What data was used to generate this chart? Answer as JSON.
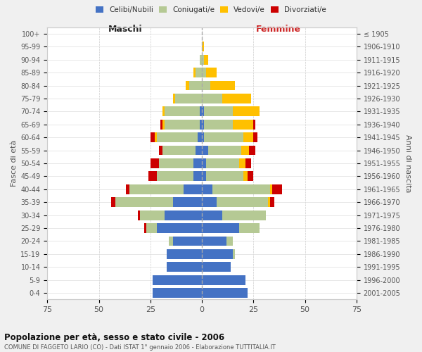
{
  "age_groups": [
    "0-4",
    "5-9",
    "10-14",
    "15-19",
    "20-24",
    "25-29",
    "30-34",
    "35-39",
    "40-44",
    "45-49",
    "50-54",
    "55-59",
    "60-64",
    "65-69",
    "70-74",
    "75-79",
    "80-84",
    "85-89",
    "90-94",
    "95-99",
    "100+"
  ],
  "birth_years": [
    "2001-2005",
    "1996-2000",
    "1991-1995",
    "1986-1990",
    "1981-1985",
    "1976-1980",
    "1971-1975",
    "1966-1970",
    "1961-1965",
    "1956-1960",
    "1951-1955",
    "1946-1950",
    "1941-1945",
    "1936-1940",
    "1931-1935",
    "1926-1930",
    "1921-1925",
    "1916-1920",
    "1911-1915",
    "1906-1910",
    "≤ 1905"
  ],
  "males": {
    "celibi": [
      24,
      24,
      17,
      17,
      14,
      22,
      18,
      14,
      9,
      4,
      4,
      3,
      2,
      1,
      1,
      0,
      0,
      0,
      0,
      0,
      0
    ],
    "coniugati": [
      0,
      0,
      0,
      0,
      2,
      5,
      12,
      28,
      26,
      18,
      17,
      16,
      20,
      17,
      17,
      13,
      6,
      3,
      1,
      0,
      0
    ],
    "vedovi": [
      0,
      0,
      0,
      0,
      0,
      0,
      0,
      0,
      0,
      0,
      0,
      0,
      1,
      1,
      1,
      1,
      2,
      1,
      0,
      0,
      0
    ],
    "divorziati": [
      0,
      0,
      0,
      0,
      0,
      1,
      1,
      2,
      2,
      4,
      4,
      2,
      2,
      1,
      0,
      0,
      0,
      0,
      0,
      0,
      0
    ]
  },
  "females": {
    "nubili": [
      22,
      21,
      14,
      15,
      12,
      18,
      10,
      7,
      5,
      2,
      2,
      3,
      1,
      1,
      1,
      0,
      0,
      0,
      0,
      0,
      0
    ],
    "coniugate": [
      0,
      0,
      0,
      1,
      3,
      10,
      21,
      25,
      28,
      18,
      16,
      16,
      19,
      14,
      14,
      10,
      4,
      2,
      1,
      0,
      0
    ],
    "vedove": [
      0,
      0,
      0,
      0,
      0,
      0,
      0,
      1,
      1,
      2,
      3,
      4,
      5,
      10,
      13,
      14,
      12,
      5,
      2,
      1,
      0
    ],
    "divorziate": [
      0,
      0,
      0,
      0,
      0,
      0,
      0,
      2,
      5,
      3,
      3,
      3,
      2,
      1,
      0,
      0,
      0,
      0,
      0,
      0,
      0
    ]
  },
  "colors": {
    "celibi": "#4472c4",
    "coniugati": "#b5c994",
    "vedovi": "#ffc000",
    "divorziati": "#cc0000"
  },
  "xlim": 75,
  "title": "Popolazione per età, sesso e stato civile - 2006",
  "subtitle": "COMUNE DI FAGGETO LARIO (CO) - Dati ISTAT 1° gennaio 2006 - Elaborazione TUTTITALIA.IT",
  "ylabel_left": "Fasce di età",
  "ylabel_right": "Anni di nascita",
  "xlabel_left": "Maschi",
  "xlabel_right": "Femmine",
  "legend_labels": [
    "Celibi/Nubili",
    "Coniugati/e",
    "Vedovi/e",
    "Divorziati/e"
  ],
  "bg_color": "#f0f0f0",
  "plot_bg": "#ffffff"
}
